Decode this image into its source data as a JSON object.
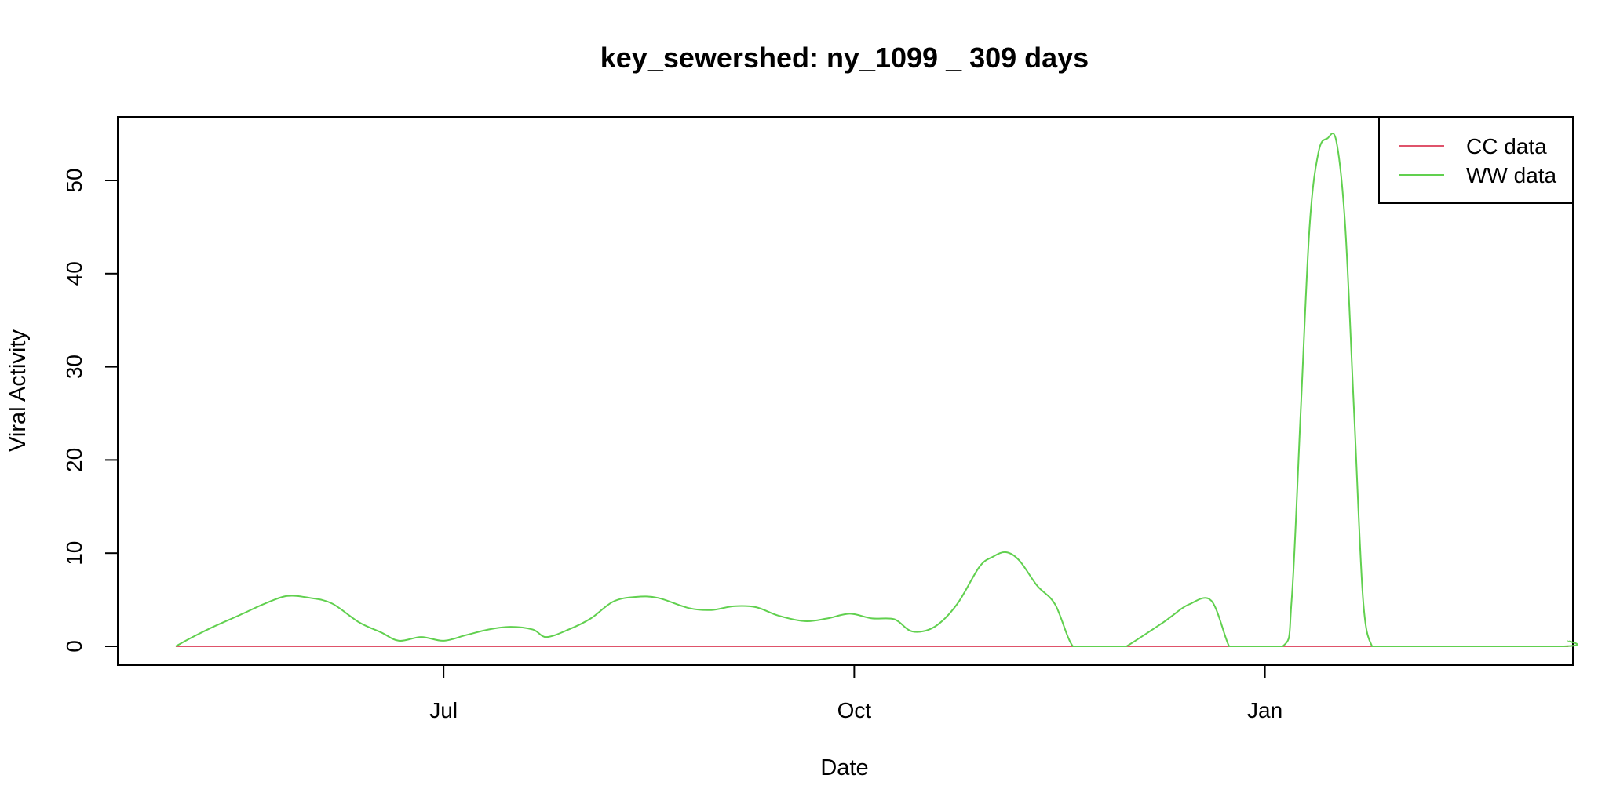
{
  "chart_data": {
    "type": "line",
    "title": "key_sewershed:  ny_1099 _ 309  days",
    "xlabel": "Date",
    "ylabel": "Viral Activity",
    "x_ticks": [
      "Jul",
      "Oct",
      "Jan"
    ],
    "x_tick_dates": [
      "2021-07-01",
      "2021-10-01",
      "2022-01-01"
    ],
    "xlim": [
      "2021-04-19",
      "2022-03-11"
    ],
    "ylim": [
      0,
      55
    ],
    "y_ticks": [
      0,
      10,
      20,
      30,
      40,
      50
    ],
    "grid": false,
    "legend_position": "top-right",
    "colors": {
      "CC data": "#DF536B",
      "WW data": "#61D04F"
    },
    "series": [
      {
        "name": "CC data",
        "x": [
          "2021-05-02",
          "2022-03-10"
        ],
        "values": [
          0,
          0
        ]
      },
      {
        "name": "WW data",
        "x": [
          "2021-05-02",
          "2021-05-05",
          "2021-05-10",
          "2021-05-17",
          "2021-05-22",
          "2021-05-27",
          "2021-06-01",
          "2021-06-06",
          "2021-06-12",
          "2021-06-17",
          "2021-06-21",
          "2021-06-26",
          "2021-07-01",
          "2021-07-06",
          "2021-07-11",
          "2021-07-16",
          "2021-07-21",
          "2021-07-24",
          "2021-07-29",
          "2021-08-03",
          "2021-08-08",
          "2021-08-13",
          "2021-08-18",
          "2021-08-25",
          "2021-08-30",
          "2021-09-04",
          "2021-09-09",
          "2021-09-14",
          "2021-09-20",
          "2021-09-25",
          "2021-09-30",
          "2021-10-05",
          "2021-10-10",
          "2021-10-14",
          "2021-10-19",
          "2021-10-24",
          "2021-10-29",
          "2021-11-01",
          "2021-11-04",
          "2021-11-07",
          "2021-11-11",
          "2021-11-15",
          "2021-11-19",
          "2021-11-23",
          "2021-11-27",
          "2021-11-30",
          "2021-12-01",
          "2021-12-09",
          "2021-12-11",
          "2021-12-15",
          "2021-12-20",
          "2021-12-24",
          "2021-12-26",
          "2022-01-05",
          "2022-01-07",
          "2022-01-09",
          "2022-01-11",
          "2022-01-13",
          "2022-01-15",
          "2022-01-17",
          "2022-01-19",
          "2022-01-21",
          "2022-01-23",
          "2022-01-25",
          "2022-01-27",
          "2022-01-29",
          "2022-02-01",
          "2022-03-09",
          "2022-03-10"
        ],
        "values": [
          0,
          0.8,
          2.0,
          3.5,
          4.6,
          5.4,
          5.2,
          4.6,
          2.6,
          1.5,
          0.6,
          1.0,
          0.6,
          1.2,
          1.8,
          2.1,
          1.8,
          1.0,
          1.8,
          3.0,
          4.8,
          5.3,
          5.2,
          4.1,
          3.9,
          4.3,
          4.2,
          3.3,
          2.7,
          3.0,
          3.5,
          3.0,
          2.9,
          1.6,
          2.1,
          4.5,
          8.5,
          9.6,
          10.1,
          9.2,
          6.5,
          4.5,
          0,
          0,
          0,
          0,
          0,
          2.5,
          3.2,
          4.5,
          4.9,
          0,
          0,
          0,
          5,
          25,
          45,
          53,
          54.5,
          54.2,
          45,
          25,
          5,
          0,
          0,
          0,
          0,
          0,
          0.6
        ]
      }
    ]
  }
}
